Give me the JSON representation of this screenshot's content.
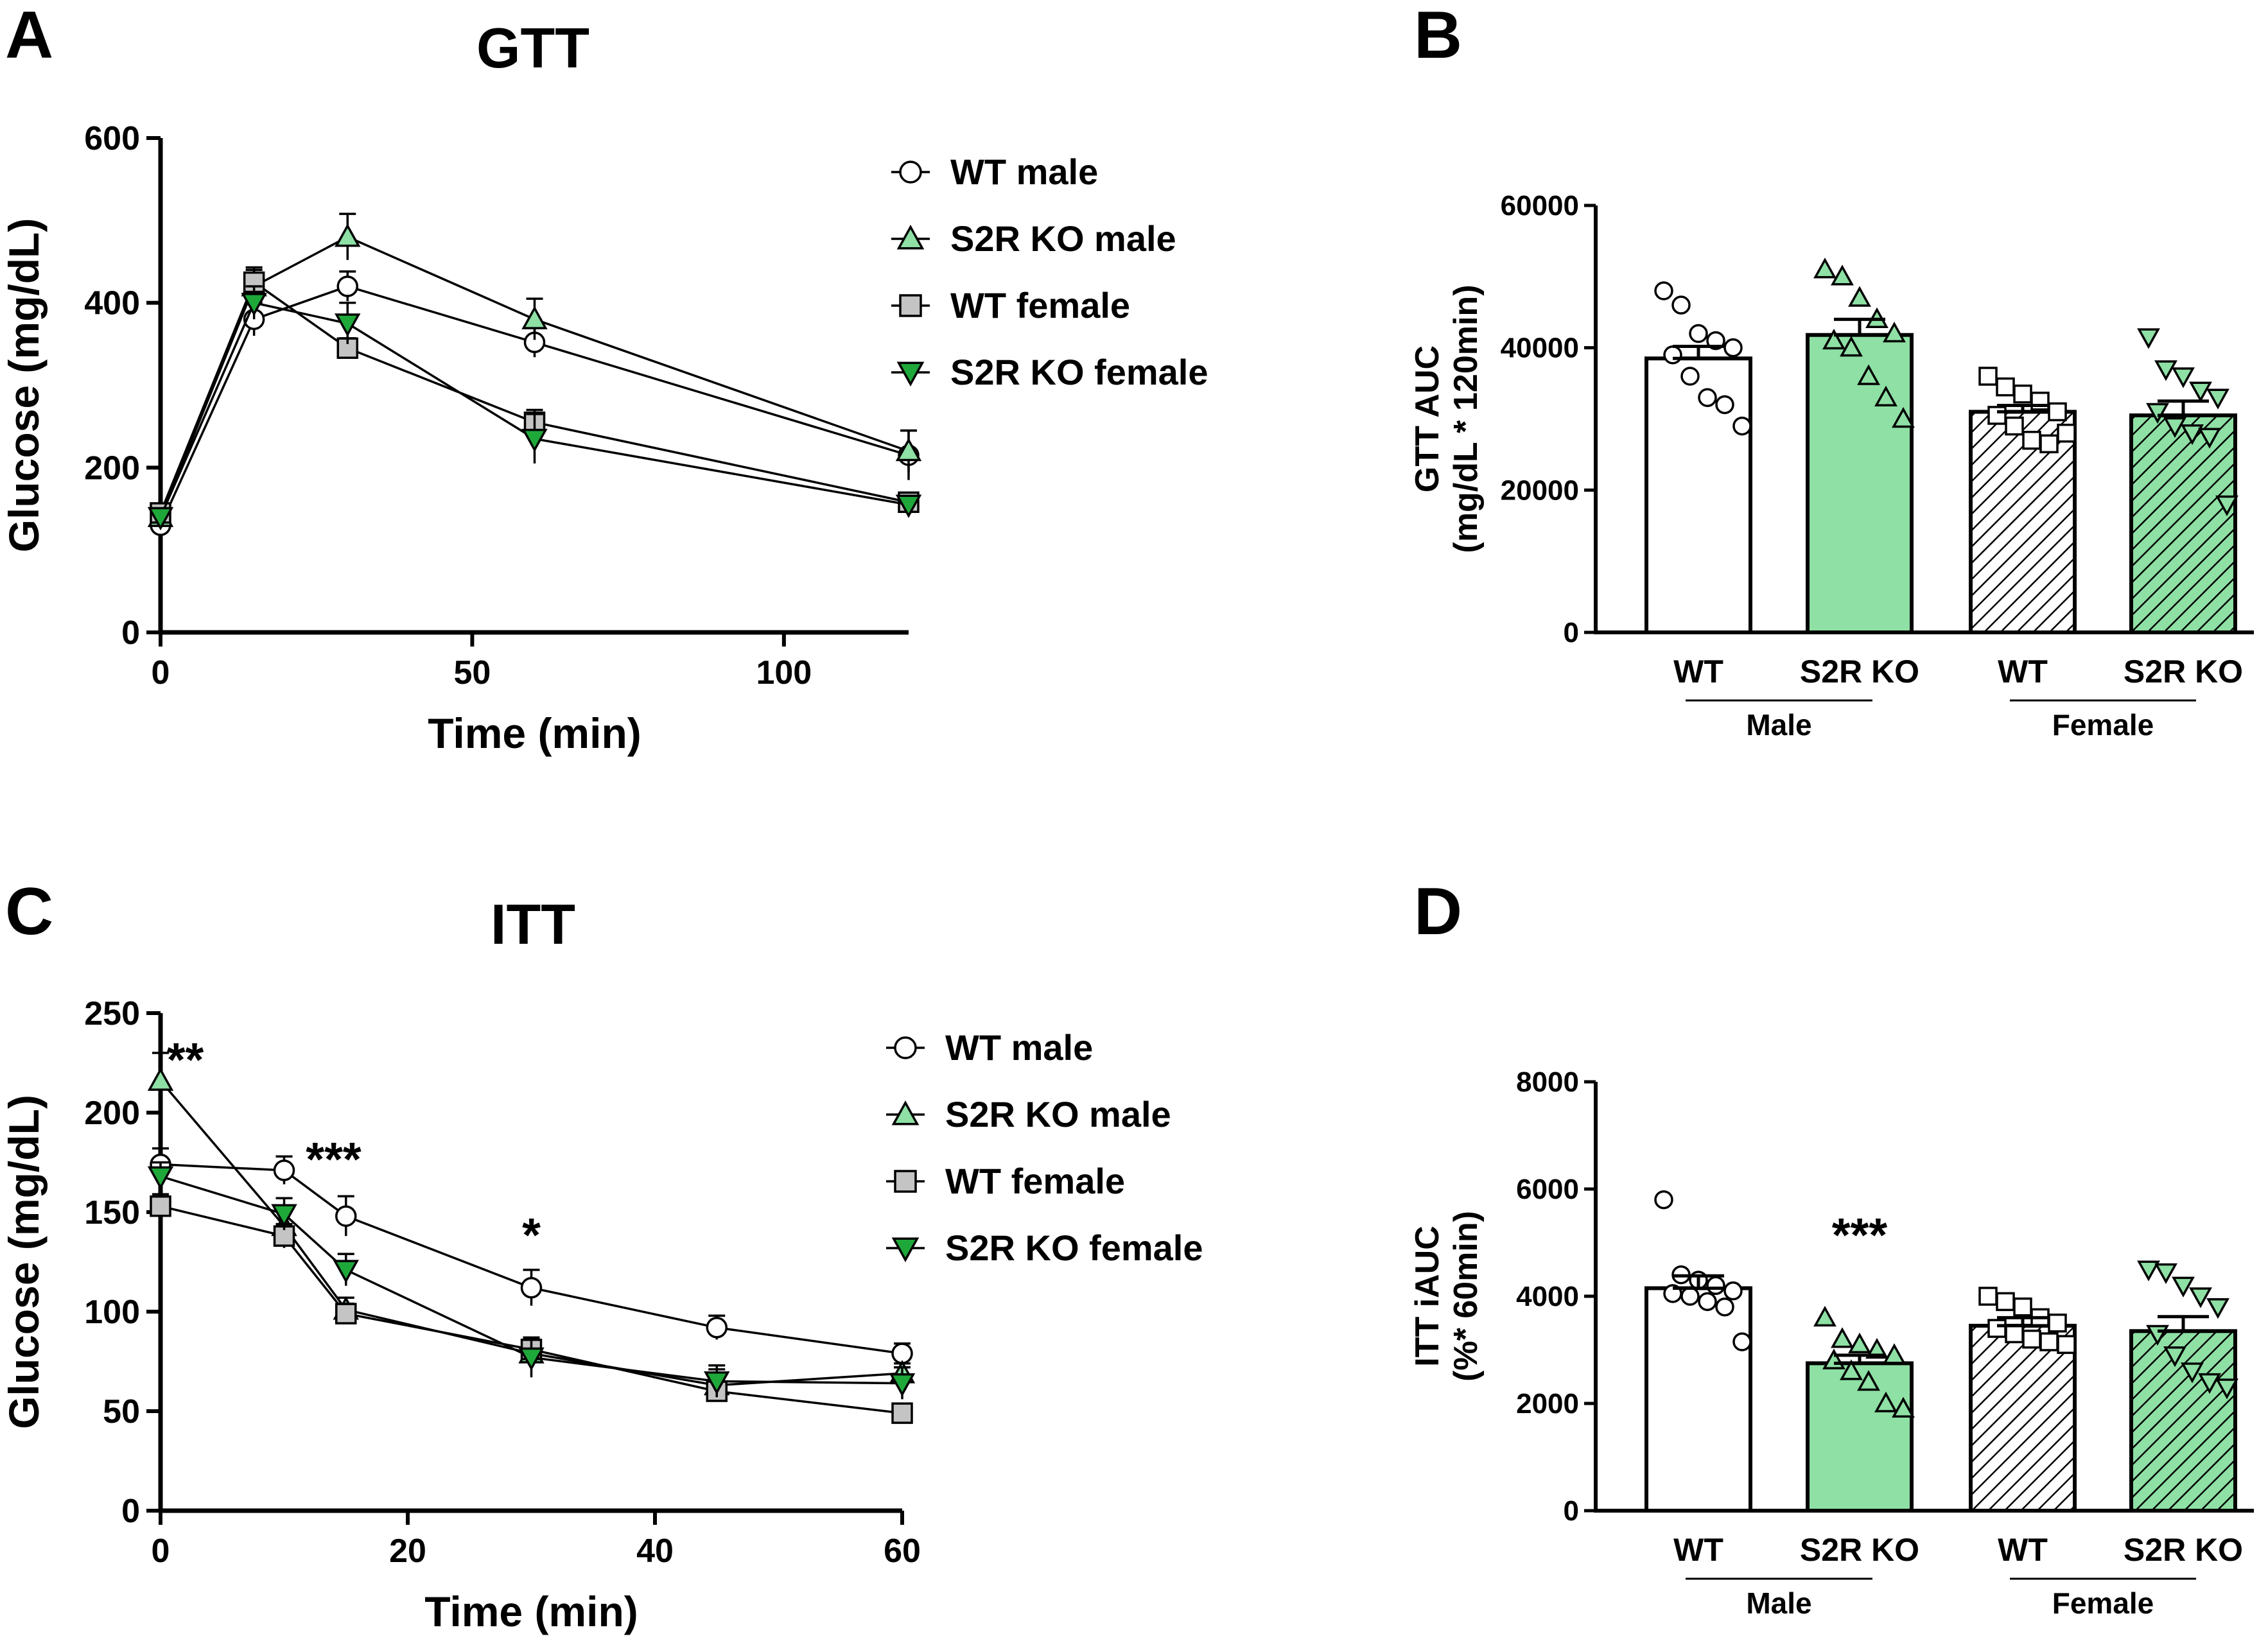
{
  "colors": {
    "wt_male": "#ffffff",
    "ko_male": "#8ee0a4",
    "wt_female": "#c4c4c4",
    "ko_female": "#1fa83a",
    "ko_hatch": "#8ee0a4",
    "ink": "#000000"
  },
  "chart_data": [
    {
      "panel": "A",
      "type": "line",
      "title": "GTT",
      "xlabel": "Time (min)",
      "ylabel": "Glucose (mg/dL)",
      "xlim": [
        0,
        120
      ],
      "ylim": [
        0,
        600
      ],
      "xticks": [
        "0",
        "50",
        "100"
      ],
      "xtick_values": [
        0,
        50,
        100
      ],
      "yticks": [
        "0",
        "200",
        "400",
        "600"
      ],
      "ytick_values": [
        0,
        200,
        400,
        600
      ],
      "x": [
        0,
        15,
        30,
        60,
        120
      ],
      "legend_position": "top-right",
      "series": [
        {
          "name": "WT male",
          "marker": "circle",
          "values": [
            130,
            380,
            420,
            352,
            215
          ],
          "errors": [
            8,
            20,
            18,
            18,
            30
          ]
        },
        {
          "name": "S2R KO male",
          "marker": "triangle-up",
          "values": [
            140,
            420,
            480,
            380,
            220
          ],
          "errors": [
            10,
            20,
            28,
            25,
            25
          ]
        },
        {
          "name": "WT female",
          "marker": "square",
          "values": [
            145,
            425,
            345,
            255,
            158
          ],
          "errors": [
            8,
            18,
            12,
            15,
            10
          ]
        },
        {
          "name": "S2R KO female",
          "marker": "triangle-down",
          "values": [
            140,
            400,
            375,
            235,
            155
          ],
          "errors": [
            8,
            20,
            25,
            30,
            10
          ]
        }
      ],
      "annotations": []
    },
    {
      "panel": "B",
      "type": "bar",
      "ylabel_line1": "GTT AUC",
      "ylabel_line2": "(mg/dL * 120min)",
      "ylim": [
        0,
        60000
      ],
      "yticks": [
        "0",
        "20000",
        "40000",
        "60000"
      ],
      "ytick_values": [
        0,
        20000,
        40000,
        60000
      ],
      "categories": [
        "WT",
        "S2R KO",
        "WT",
        "S2R KO"
      ],
      "groups": [
        "Male",
        "Female"
      ],
      "values": [
        38500,
        41800,
        31000,
        30500
      ],
      "errors": [
        1700,
        2200,
        900,
        2000
      ],
      "points": [
        [
          48000,
          46000,
          42000,
          41000,
          40000,
          39000,
          36000,
          33000,
          32000,
          29000
        ],
        [
          51000,
          50000,
          47000,
          44000,
          42000,
          41000,
          40000,
          36000,
          33000,
          30000
        ],
        [
          36000,
          34500,
          33500,
          32500,
          31000,
          30500,
          29000,
          27000,
          26500,
          28000
        ],
        [
          41500,
          37000,
          36000,
          34000,
          33000,
          31000,
          29000,
          28000,
          27500,
          18000
        ]
      ],
      "annotations": []
    },
    {
      "panel": "C",
      "type": "line",
      "title": "ITT",
      "xlabel": "Time (min)",
      "ylabel": "Glucose (mg/dL)",
      "xlim": [
        0,
        60
      ],
      "ylim": [
        0,
        250
      ],
      "xticks": [
        "0",
        "20",
        "40",
        "60"
      ],
      "xtick_values": [
        0,
        20,
        40,
        60
      ],
      "yticks": [
        "0",
        "50",
        "100",
        "150",
        "200",
        "250"
      ],
      "ytick_values": [
        0,
        50,
        100,
        150,
        200,
        250
      ],
      "x": [
        0,
        10,
        15,
        30,
        45,
        60
      ],
      "legend_position": "top-right",
      "series": [
        {
          "name": "WT male",
          "marker": "circle",
          "values": [
            174,
            171,
            148,
            112,
            92,
            79
          ],
          "errors": [
            8,
            7,
            10,
            9,
            6,
            5
          ]
        },
        {
          "name": "S2R KO male",
          "marker": "triangle-up",
          "values": [
            216,
            143,
            101,
            79,
            63,
            69
          ],
          "errors": [
            14,
            10,
            6,
            7,
            8,
            5
          ]
        },
        {
          "name": "WT female",
          "marker": "square",
          "values": [
            153,
            138,
            99,
            81,
            60,
            49
          ],
          "errors": [
            6,
            6,
            5,
            5,
            4,
            4
          ]
        },
        {
          "name": "S2R KO female",
          "marker": "triangle-down",
          "values": [
            168,
            149,
            121,
            77,
            65,
            64
          ],
          "errors": [
            7,
            8,
            8,
            10,
            8,
            8
          ]
        }
      ],
      "annotations": [
        {
          "x": 2,
          "y": 228,
          "text": "**"
        },
        {
          "x": 14,
          "y": 178,
          "text": "***"
        },
        {
          "x": 30,
          "y": 140,
          "text": "*"
        }
      ]
    },
    {
      "panel": "D",
      "type": "bar",
      "ylabel_line1": "ITT iAUC",
      "ylabel_line2": "(%* 60min)",
      "ylim": [
        0,
        8000
      ],
      "yticks": [
        "0",
        "2000",
        "4000",
        "6000",
        "8000"
      ],
      "ytick_values": [
        0,
        2000,
        4000,
        6000,
        8000
      ],
      "categories": [
        "WT",
        "S2R KO",
        "WT",
        "S2R KO"
      ],
      "groups": [
        "Male",
        "Female"
      ],
      "values": [
        4150,
        2750,
        3450,
        3350
      ],
      "errors": [
        230,
        150,
        150,
        270
      ],
      "points": [
        [
          5800,
          4400,
          4300,
          4200,
          4100,
          4050,
          4000,
          3900,
          3800,
          3150
        ],
        [
          3600,
          3200,
          3100,
          3000,
          2900,
          2800,
          2600,
          2400,
          2000,
          1900
        ],
        [
          4000,
          3900,
          3800,
          3600,
          3500,
          3400,
          3300,
          3200,
          3150,
          3100
        ],
        [
          4500,
          4450,
          4200,
          4000,
          3800,
          3300,
          2900,
          2600,
          2400,
          2300
        ]
      ],
      "annotations": [
        {
          "bar": 1,
          "value": 5200,
          "text": "***"
        }
      ]
    }
  ],
  "panel_labels": [
    "A",
    "B",
    "C",
    "D"
  ]
}
